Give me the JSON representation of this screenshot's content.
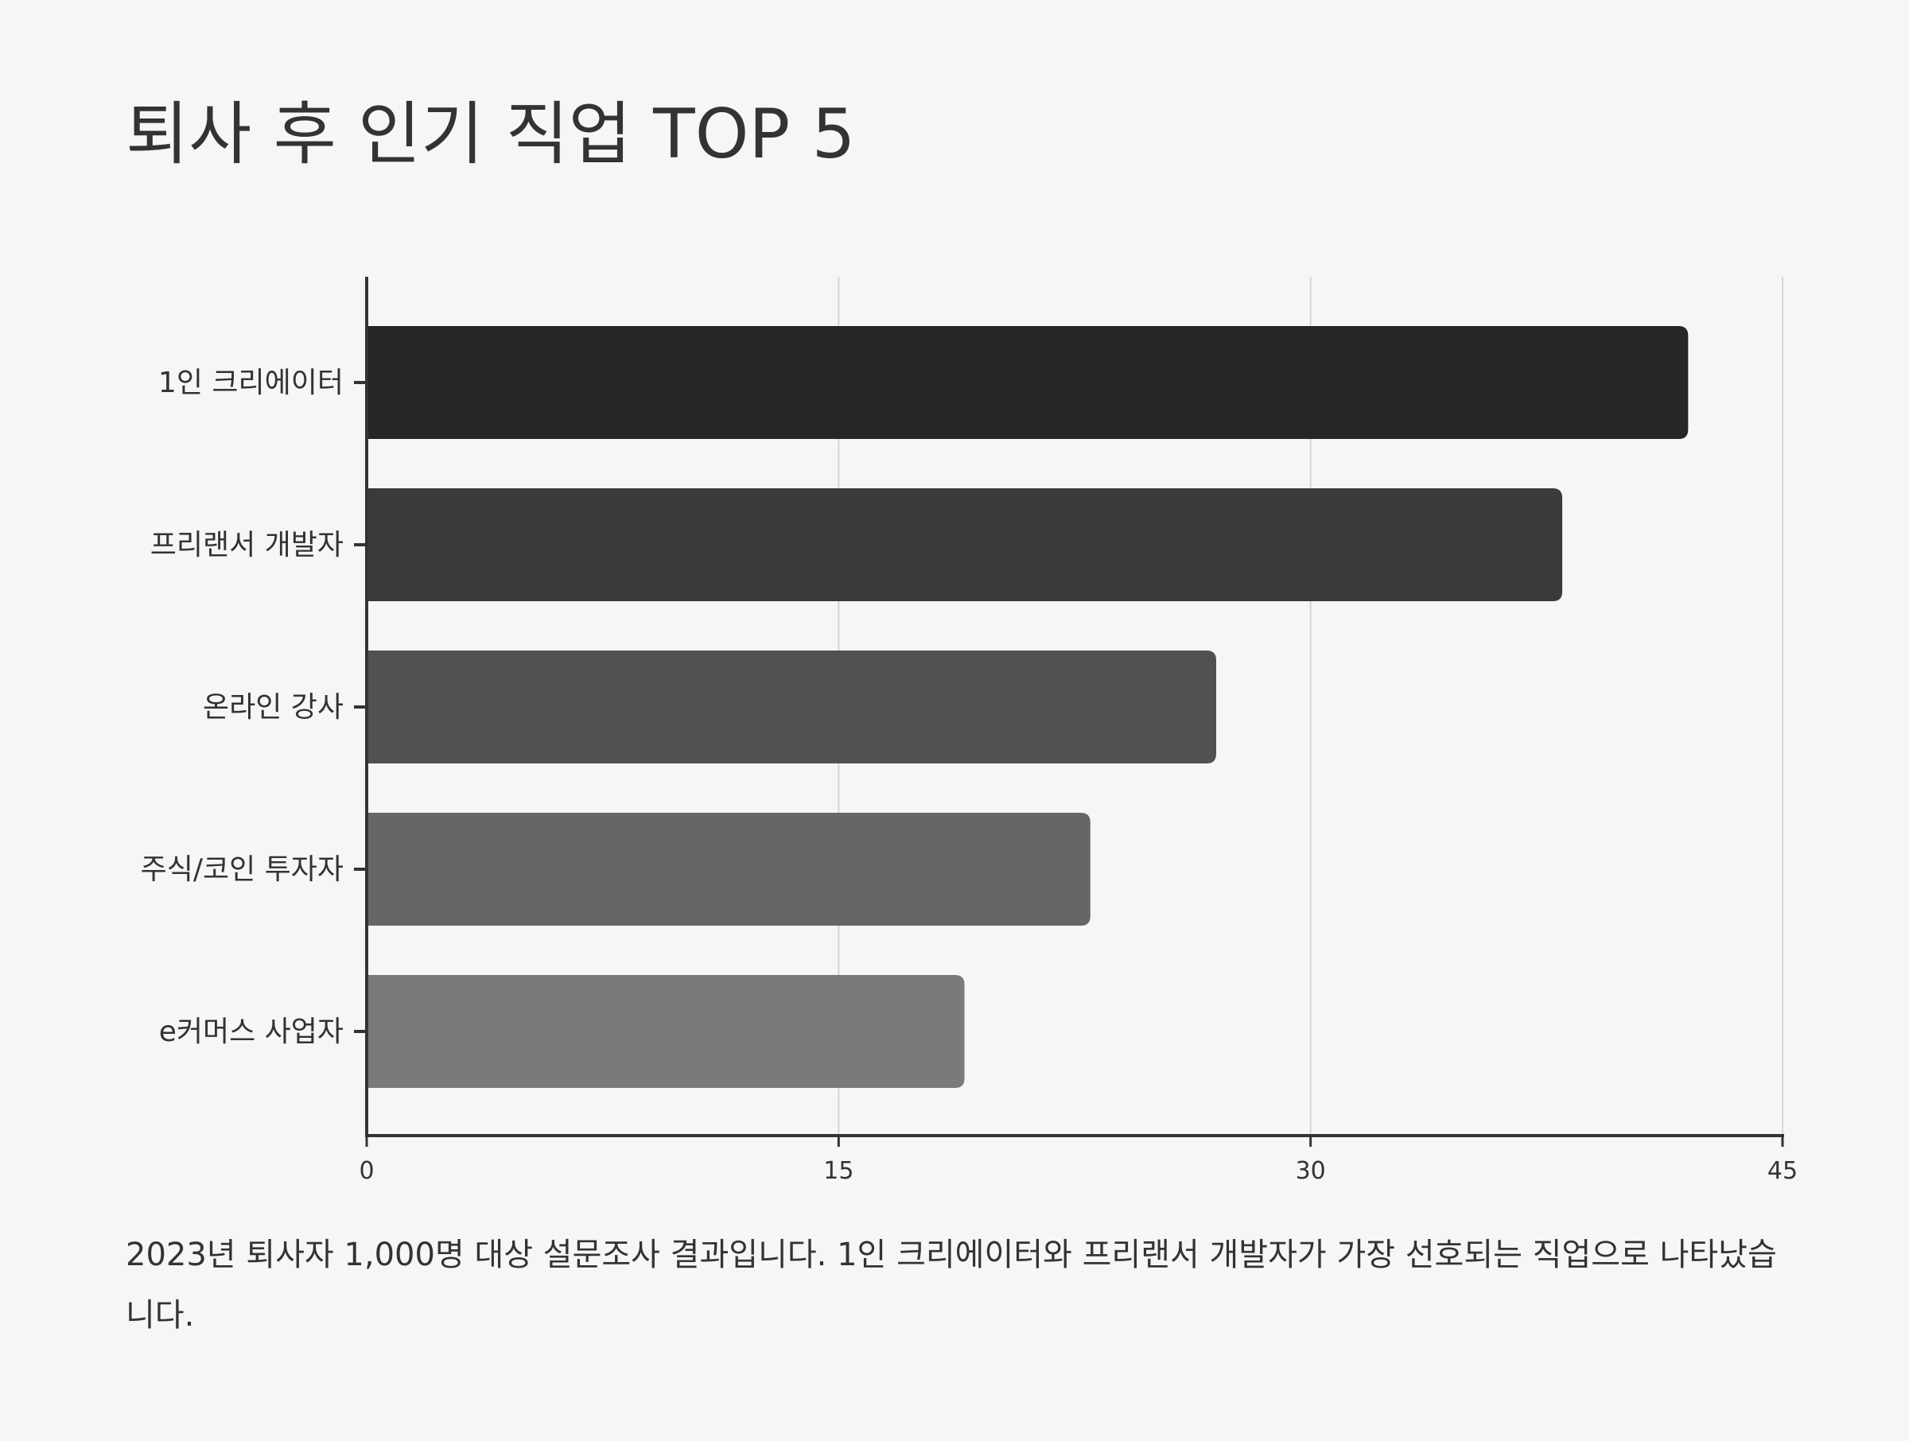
{
  "title": "퇴사 후 인기 직업 TOP 5",
  "caption": "2023년 퇴사자 1,000명 대상 설문조사 결과입니다. 1인 크리에이터와 프리랜서 개발자가 가장 선호되는 직업으로 나타났습니다.",
  "colors": {
    "background": "#f6f6f6",
    "axis": "#333333",
    "grid": "#d4d4d4",
    "bars": [
      "#262626",
      "#3b3b3b",
      "#515151",
      "#666666",
      "#7a7a7a"
    ]
  },
  "chart_data": {
    "type": "bar",
    "orientation": "horizontal",
    "categories": [
      "1인 크리에이터",
      "프리랜서 개발자",
      "온라인 강사",
      "주식/코인 투자자",
      "e커머스 사업자"
    ],
    "values": [
      42,
      38,
      27,
      23,
      19
    ],
    "xlim": [
      0,
      45
    ],
    "xticks": [
      "0",
      "15",
      "30",
      "45"
    ],
    "xtick_values": [
      0,
      15,
      30,
      45
    ],
    "grid": "vertical",
    "legend": "none"
  }
}
